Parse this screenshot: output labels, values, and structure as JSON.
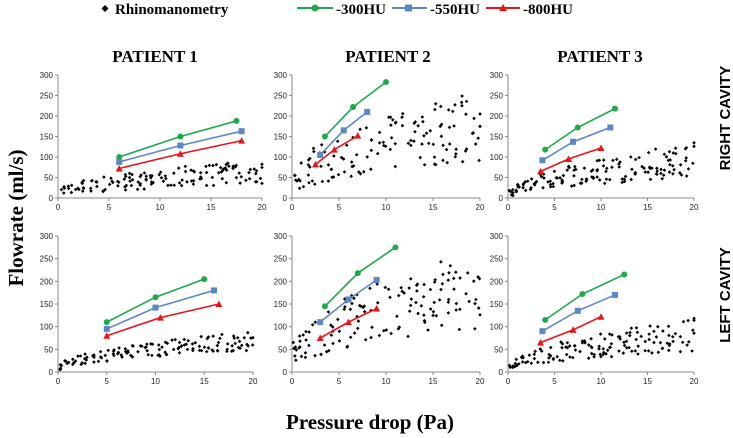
{
  "legend": [
    {
      "label": "Rhinomanometry",
      "color": "#000000",
      "marker": "diamond-icon"
    },
    {
      "label": "-300HU",
      "color": "#1fa84a",
      "marker": "circle-icon"
    },
    {
      "label": "-550HU",
      "color": "#5b87c6",
      "marker": "square-icon"
    },
    {
      "label": "-800HU",
      "color": "#e8141a",
      "marker": "triangle-icon"
    }
  ],
  "column_titles": [
    "PATIENT 1",
    "PATIENT 2",
    "PATIENT 3"
  ],
  "row_labels": [
    "RIGHT CAVITY",
    "LEFT CAVITY"
  ],
  "ylabel": "Flowrate (ml/s)",
  "xlabel": "Pressure drop (Pa)",
  "chart_data": [
    {
      "type": "scatter",
      "title": "PATIENT 1",
      "row": "RIGHT CAVITY",
      "xlim": [
        0,
        20
      ],
      "ylim": [
        0,
        300
      ],
      "xticks": [
        0,
        5,
        10,
        15,
        20
      ],
      "yticks": [
        0,
        50,
        100,
        150,
        200,
        250,
        300
      ],
      "scatter_bands": [
        [
          0.5,
          20,
          15,
          95
        ],
        [
          0.5,
          20,
          0,
          55
        ]
      ],
      "series": [
        {
          "name": "-300HU",
          "x": [
            6,
            12,
            17.5
          ],
          "y": [
            100,
            150,
            188
          ]
        },
        {
          "name": "-550HU",
          "x": [
            6,
            12,
            18
          ],
          "y": [
            88,
            128,
            163
          ]
        },
        {
          "name": "-800HU",
          "x": [
            6,
            12,
            18
          ],
          "y": [
            72,
            108,
            140
          ]
        }
      ]
    },
    {
      "type": "scatter",
      "title": "PATIENT 2",
      "row": "RIGHT CAVITY",
      "xlim": [
        0,
        20
      ],
      "ylim": [
        0,
        300
      ],
      "xticks": [
        0,
        5,
        10,
        15,
        20
      ],
      "yticks": [
        0,
        50,
        100,
        150,
        200,
        250,
        300
      ],
      "scatter_bands": [
        [
          0.3,
          20,
          50,
          260
        ],
        [
          0.3,
          20,
          0,
          150
        ]
      ],
      "series": [
        {
          "name": "-300HU",
          "x": [
            3.5,
            6.5,
            10
          ],
          "y": [
            150,
            222,
            283
          ]
        },
        {
          "name": "-550HU",
          "x": [
            3,
            5.5,
            8
          ],
          "y": [
            105,
            165,
            210
          ]
        },
        {
          "name": "-800HU",
          "x": [
            2.5,
            4.5,
            7
          ],
          "y": [
            82,
            118,
            152
          ]
        }
      ]
    },
    {
      "type": "scatter",
      "title": "PATIENT 3",
      "row": "RIGHT CAVITY",
      "xlim": [
        0,
        20
      ],
      "ylim": [
        0,
        300
      ],
      "xticks": [
        0,
        5,
        10,
        15,
        20
      ],
      "yticks": [
        0,
        50,
        100,
        150,
        200,
        250,
        300
      ],
      "scatter_bands": [
        [
          0.3,
          20,
          5,
          135
        ],
        [
          1,
          20,
          0,
          80
        ]
      ],
      "series": [
        {
          "name": "-300HU",
          "x": [
            4,
            7.5,
            11.5
          ],
          "y": [
            118,
            172,
            218
          ]
        },
        {
          "name": "-550HU",
          "x": [
            3.7,
            7,
            11
          ],
          "y": [
            92,
            137,
            172
          ]
        },
        {
          "name": "-800HU",
          "x": [
            3.5,
            6.5,
            10
          ],
          "y": [
            65,
            95,
            122
          ]
        }
      ]
    },
    {
      "type": "scatter",
      "title": "PATIENT 1",
      "row": "LEFT CAVITY",
      "xlim": [
        0,
        20
      ],
      "ylim": [
        0,
        300
      ],
      "xticks": [
        0,
        5,
        10,
        15,
        20
      ],
      "yticks": [
        0,
        50,
        100,
        150,
        200,
        250,
        300
      ],
      "scatter_bands": [
        [
          0.2,
          20,
          8,
          92
        ],
        [
          0.2,
          20,
          0,
          80
        ]
      ],
      "series": [
        {
          "name": "-300HU",
          "x": [
            5,
            10,
            15
          ],
          "y": [
            110,
            165,
            205
          ]
        },
        {
          "name": "-550HU",
          "x": [
            5,
            10,
            16
          ],
          "y": [
            95,
            142,
            180
          ]
        },
        {
          "name": "-800HU",
          "x": [
            5,
            10.5,
            16.5
          ],
          "y": [
            80,
            120,
            150
          ]
        }
      ]
    },
    {
      "type": "scatter",
      "title": "PATIENT 2",
      "row": "LEFT CAVITY",
      "xlim": [
        0,
        20
      ],
      "ylim": [
        0,
        300
      ],
      "xticks": [
        0,
        5,
        10,
        15,
        20
      ],
      "yticks": [
        0,
        50,
        100,
        150,
        200,
        250,
        300
      ],
      "scatter_bands": [
        [
          0.3,
          20,
          40,
          270
        ],
        [
          0.3,
          20,
          0,
          160
        ]
      ],
      "series": [
        {
          "name": "-300HU",
          "x": [
            3.5,
            7,
            11
          ],
          "y": [
            145,
            218,
            275
          ]
        },
        {
          "name": "-550HU",
          "x": [
            3,
            6,
            9
          ],
          "y": [
            110,
            160,
            203
          ]
        },
        {
          "name": "-800HU",
          "x": [
            3,
            6,
            9
          ],
          "y": [
            75,
            110,
            140
          ]
        }
      ]
    },
    {
      "type": "scatter",
      "title": "PATIENT 3",
      "row": "LEFT CAVITY",
      "xlim": [
        0,
        20
      ],
      "ylim": [
        0,
        300
      ],
      "xticks": [
        0,
        5,
        10,
        15,
        20
      ],
      "yticks": [
        0,
        50,
        100,
        150,
        200,
        250,
        300
      ],
      "scatter_bands": [
        [
          0.3,
          20,
          5,
          120
        ],
        [
          1,
          20,
          0,
          75
        ]
      ],
      "series": [
        {
          "name": "-300HU",
          "x": [
            4,
            8,
            12.5
          ],
          "y": [
            115,
            172,
            215
          ]
        },
        {
          "name": "-550HU",
          "x": [
            3.7,
            7.5,
            11.5
          ],
          "y": [
            90,
            135,
            170
          ]
        },
        {
          "name": "-800HU",
          "x": [
            3.5,
            7,
            10
          ],
          "y": [
            65,
            93,
            122
          ]
        }
      ]
    }
  ]
}
